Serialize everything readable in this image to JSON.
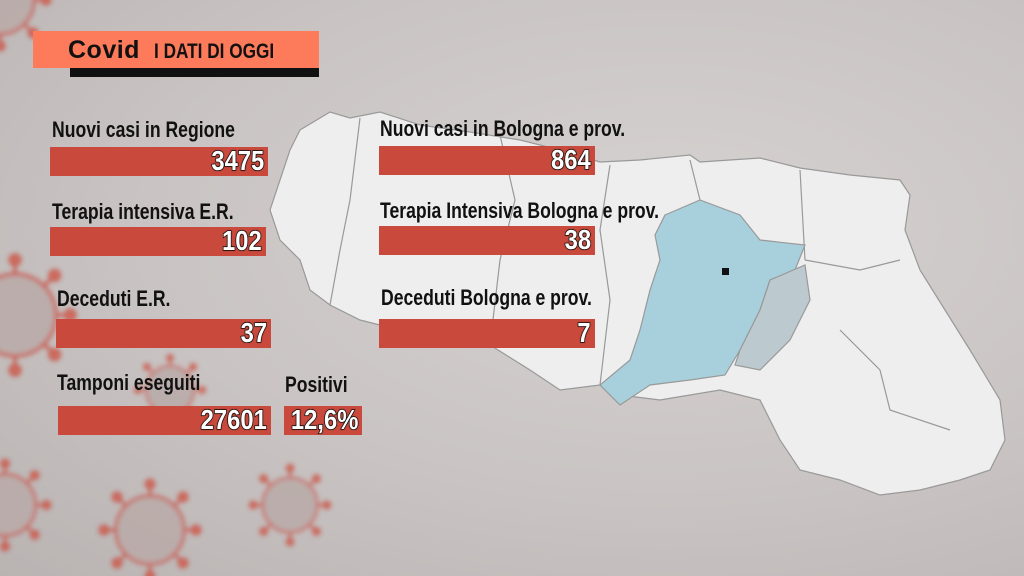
{
  "header": {
    "title": "Covid",
    "subtitle": "I DATI DI OGGI",
    "accent": "#fd7a5a"
  },
  "region": {
    "new_cases": {
      "label": "Nuovi casi in Regione",
      "value": "3475"
    },
    "icu": {
      "label": "Terapia intensiva E.R.",
      "value": "102"
    },
    "deaths": {
      "label": "Deceduti E.R.",
      "value": "37"
    },
    "swabs": {
      "label": "Tamponi eseguiti",
      "value": "27601"
    },
    "positive": {
      "label": "Positivi",
      "value": "12,6%"
    }
  },
  "bologna": {
    "new_cases": {
      "label": "Nuovi casi in Bologna e prov.",
      "value": "864"
    },
    "icu": {
      "label": "Terapia Intensiva Bologna e prov.",
      "value": "38"
    },
    "deaths": {
      "label": "Deceduti Bologna e prov.",
      "value": "7"
    }
  },
  "colors": {
    "bar": "#c94a3c",
    "map": "#eeeeee",
    "bologna_highlight": "#a8d0dc",
    "virus": "#d2604e"
  }
}
